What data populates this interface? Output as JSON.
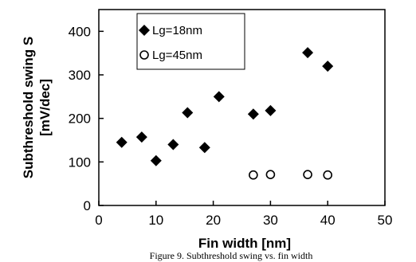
{
  "chart_data": {
    "type": "scatter",
    "xlabel": "Fin width [nm]",
    "ylabel_line1": "Subthreshold swing S",
    "ylabel_line2": "[mV/dec]",
    "xlim": [
      0,
      50
    ],
    "ylim": [
      0,
      450
    ],
    "xticks": [
      0,
      10,
      20,
      30,
      40,
      50
    ],
    "yticks": [
      0,
      100,
      200,
      300,
      400
    ],
    "xtick_labels": [
      "0",
      "10",
      "20",
      "30",
      "40",
      "50"
    ],
    "ytick_labels": [
      "0",
      "100",
      "200",
      "300",
      "400"
    ],
    "grid": false,
    "legend_position": "top-left",
    "series": [
      {
        "name": "Lg=18nm",
        "marker": "filled-diamond",
        "x": [
          4,
          7.5,
          10,
          13,
          15.5,
          18.5,
          21,
          27,
          30,
          36.5,
          40
        ],
        "y": [
          145,
          157,
          103,
          140,
          213,
          133,
          250,
          210,
          218,
          351,
          320
        ]
      },
      {
        "name": "Lg=45nm",
        "marker": "open-circle",
        "x": [
          27,
          30,
          36.5,
          40
        ],
        "y": [
          70,
          71,
          71,
          70
        ]
      }
    ],
    "caption": "Figure 9. Subthreshold swing vs. fin width"
  }
}
